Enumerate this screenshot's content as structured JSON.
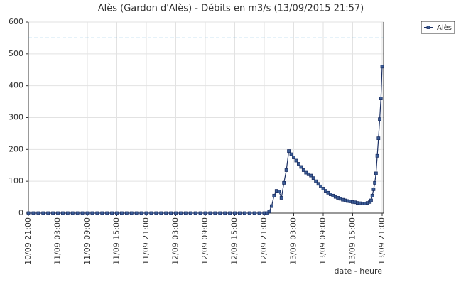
{
  "chart_data": {
    "type": "line",
    "title": "Alès (Gardon d'Alès) - Débits en m3/s (13/09/2015 21:57)",
    "xlabel": "date - heure",
    "legend": "top-right",
    "grid": true,
    "reference_line": 550,
    "reference_color": "#3a9ad0",
    "xlim": [
      "10/09 21:00",
      "13/09 21:00"
    ],
    "xticks": [
      "10/09 21:00",
      "11/09 03:00",
      "11/09 09:00",
      "11/09 15:00",
      "11/09 21:00",
      "12/09 03:00",
      "12/09 09:00",
      "12/09 15:00",
      "12/09 21:00",
      "13/09 03:00",
      "13/09 09:00",
      "13/09 15:00",
      "13/09 21:00"
    ],
    "ylim": [
      0,
      600
    ],
    "yticks": [
      0,
      100,
      200,
      300,
      400,
      500,
      600
    ],
    "x": [
      "10/09 21:00",
      "10/09 22:00",
      "10/09 23:00",
      "11/09 00:00",
      "11/09 01:00",
      "11/09 02:00",
      "11/09 03:00",
      "11/09 04:00",
      "11/09 05:00",
      "11/09 06:00",
      "11/09 07:00",
      "11/09 08:00",
      "11/09 09:00",
      "11/09 10:00",
      "11/09 11:00",
      "11/09 12:00",
      "11/09 13:00",
      "11/09 14:00",
      "11/09 15:00",
      "11/09 16:00",
      "11/09 17:00",
      "11/09 18:00",
      "11/09 19:00",
      "11/09 20:00",
      "11/09 21:00",
      "11/09 22:00",
      "11/09 23:00",
      "12/09 00:00",
      "12/09 01:00",
      "12/09 02:00",
      "12/09 03:00",
      "12/09 04:00",
      "12/09 05:00",
      "12/09 06:00",
      "12/09 07:00",
      "12/09 08:00",
      "12/09 09:00",
      "12/09 10:00",
      "12/09 11:00",
      "12/09 12:00",
      "12/09 13:00",
      "12/09 14:00",
      "12/09 15:00",
      "12/09 16:00",
      "12/09 17:00",
      "12/09 18:00",
      "12/09 19:00",
      "12/09 20:00",
      "12/09 21:00",
      "12/09 21:30",
      "12/09 22:00",
      "12/09 22:30",
      "12/09 23:00",
      "12/09 23:30",
      "13/09 00:00",
      "13/09 00:30",
      "13/09 01:00",
      "13/09 01:30",
      "13/09 02:00",
      "13/09 02:30",
      "13/09 03:00",
      "13/09 03:30",
      "13/09 04:00",
      "13/09 04:30",
      "13/09 05:00",
      "13/09 05:30",
      "13/09 06:00",
      "13/09 06:30",
      "13/09 07:00",
      "13/09 07:30",
      "13/09 08:00",
      "13/09 08:30",
      "13/09 09:00",
      "13/09 09:30",
      "13/09 10:00",
      "13/09 10:30",
      "13/09 11:00",
      "13/09 11:30",
      "13/09 12:00",
      "13/09 12:30",
      "13/09 13:00",
      "13/09 13:30",
      "13/09 14:00",
      "13/09 14:30",
      "13/09 15:00",
      "13/09 15:30",
      "13/09 16:00",
      "13/09 16:30",
      "13/09 17:00",
      "13/09 17:30",
      "13/09 18:00",
      "13/09 18:30",
      "13/09 18:45",
      "13/09 19:00",
      "13/09 19:15",
      "13/09 19:30",
      "13/09 19:45",
      "13/09 20:00",
      "13/09 20:15",
      "13/09 20:30",
      "13/09 20:45",
      "13/09 21:00"
    ],
    "series": [
      {
        "name": "Alès",
        "color": "#1b2f63",
        "values": [
          0,
          0,
          0,
          0,
          0,
          0,
          0,
          0,
          0,
          0,
          0,
          0,
          0,
          0,
          0,
          0,
          0,
          0,
          0,
          0,
          0,
          0,
          0,
          0,
          0,
          0,
          0,
          0,
          0,
          0,
          0,
          0,
          0,
          0,
          0,
          0,
          0,
          0,
          0,
          0,
          0,
          0,
          0,
          0,
          0,
          0,
          0,
          0,
          0,
          0,
          5,
          22,
          55,
          70,
          68,
          48,
          95,
          135,
          195,
          185,
          175,
          165,
          155,
          145,
          135,
          127,
          122,
          118,
          110,
          100,
          92,
          84,
          77,
          70,
          64,
          59,
          55,
          51,
          48,
          45,
          42,
          40,
          38,
          37,
          35,
          34,
          32,
          31,
          30,
          30,
          32,
          35,
          40,
          55,
          75,
          95,
          125,
          180,
          235,
          295,
          360,
          460
        ]
      }
    ]
  }
}
